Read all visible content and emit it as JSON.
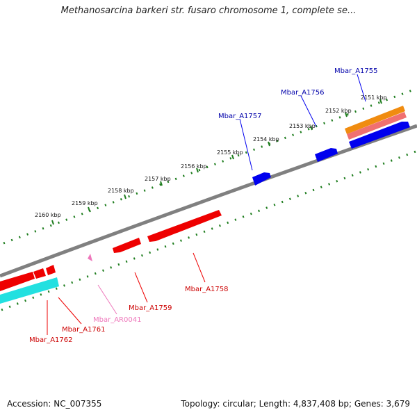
{
  "title": "Methanosarcina barkeri str. fusaro chromosome 1, complete se...",
  "footer": {
    "accession": "Accession: NC_007355",
    "summary": "Topology: circular; Length: 4,837,408 bp; Genes: 3,679"
  },
  "colors": {
    "backbone": "#808080",
    "tick": "#1e7d1e",
    "forward_cds": "#0000ee",
    "reverse_cds": "#ee0000",
    "rna": "#ee77bb",
    "orange_feature": "#f08c10",
    "salmon_feature": "#f07070",
    "cyan_feature": "#22e0e0"
  },
  "scale": {
    "tick_labels": [
      "2151 kbp",
      "2152 kbp",
      "2153 kbp",
      "2154 kbp",
      "2155 kbp",
      "2156 kbp",
      "2157 kbp",
      "2158 kbp",
      "2159 kbp",
      "2160 kbp"
    ]
  },
  "genes": [
    {
      "name": "Mbar_A1755",
      "strand": "forward",
      "color": "#0000ee"
    },
    {
      "name": "Mbar_A1756",
      "strand": "forward",
      "color": "#0000ee"
    },
    {
      "name": "Mbar_A1757",
      "strand": "forward",
      "color": "#0000ee"
    },
    {
      "name": "Mbar_A1758",
      "strand": "reverse",
      "color": "#ee0000"
    },
    {
      "name": "Mbar_A1759",
      "strand": "reverse",
      "color": "#ee0000"
    },
    {
      "name": "Mbar_AR0041",
      "strand": "reverse",
      "color": "#ee77bb"
    },
    {
      "name": "Mbar_A1761",
      "strand": "reverse",
      "color": "#ee0000"
    },
    {
      "name": "Mbar_A1762",
      "strand": "reverse",
      "color": "#ee0000"
    }
  ]
}
